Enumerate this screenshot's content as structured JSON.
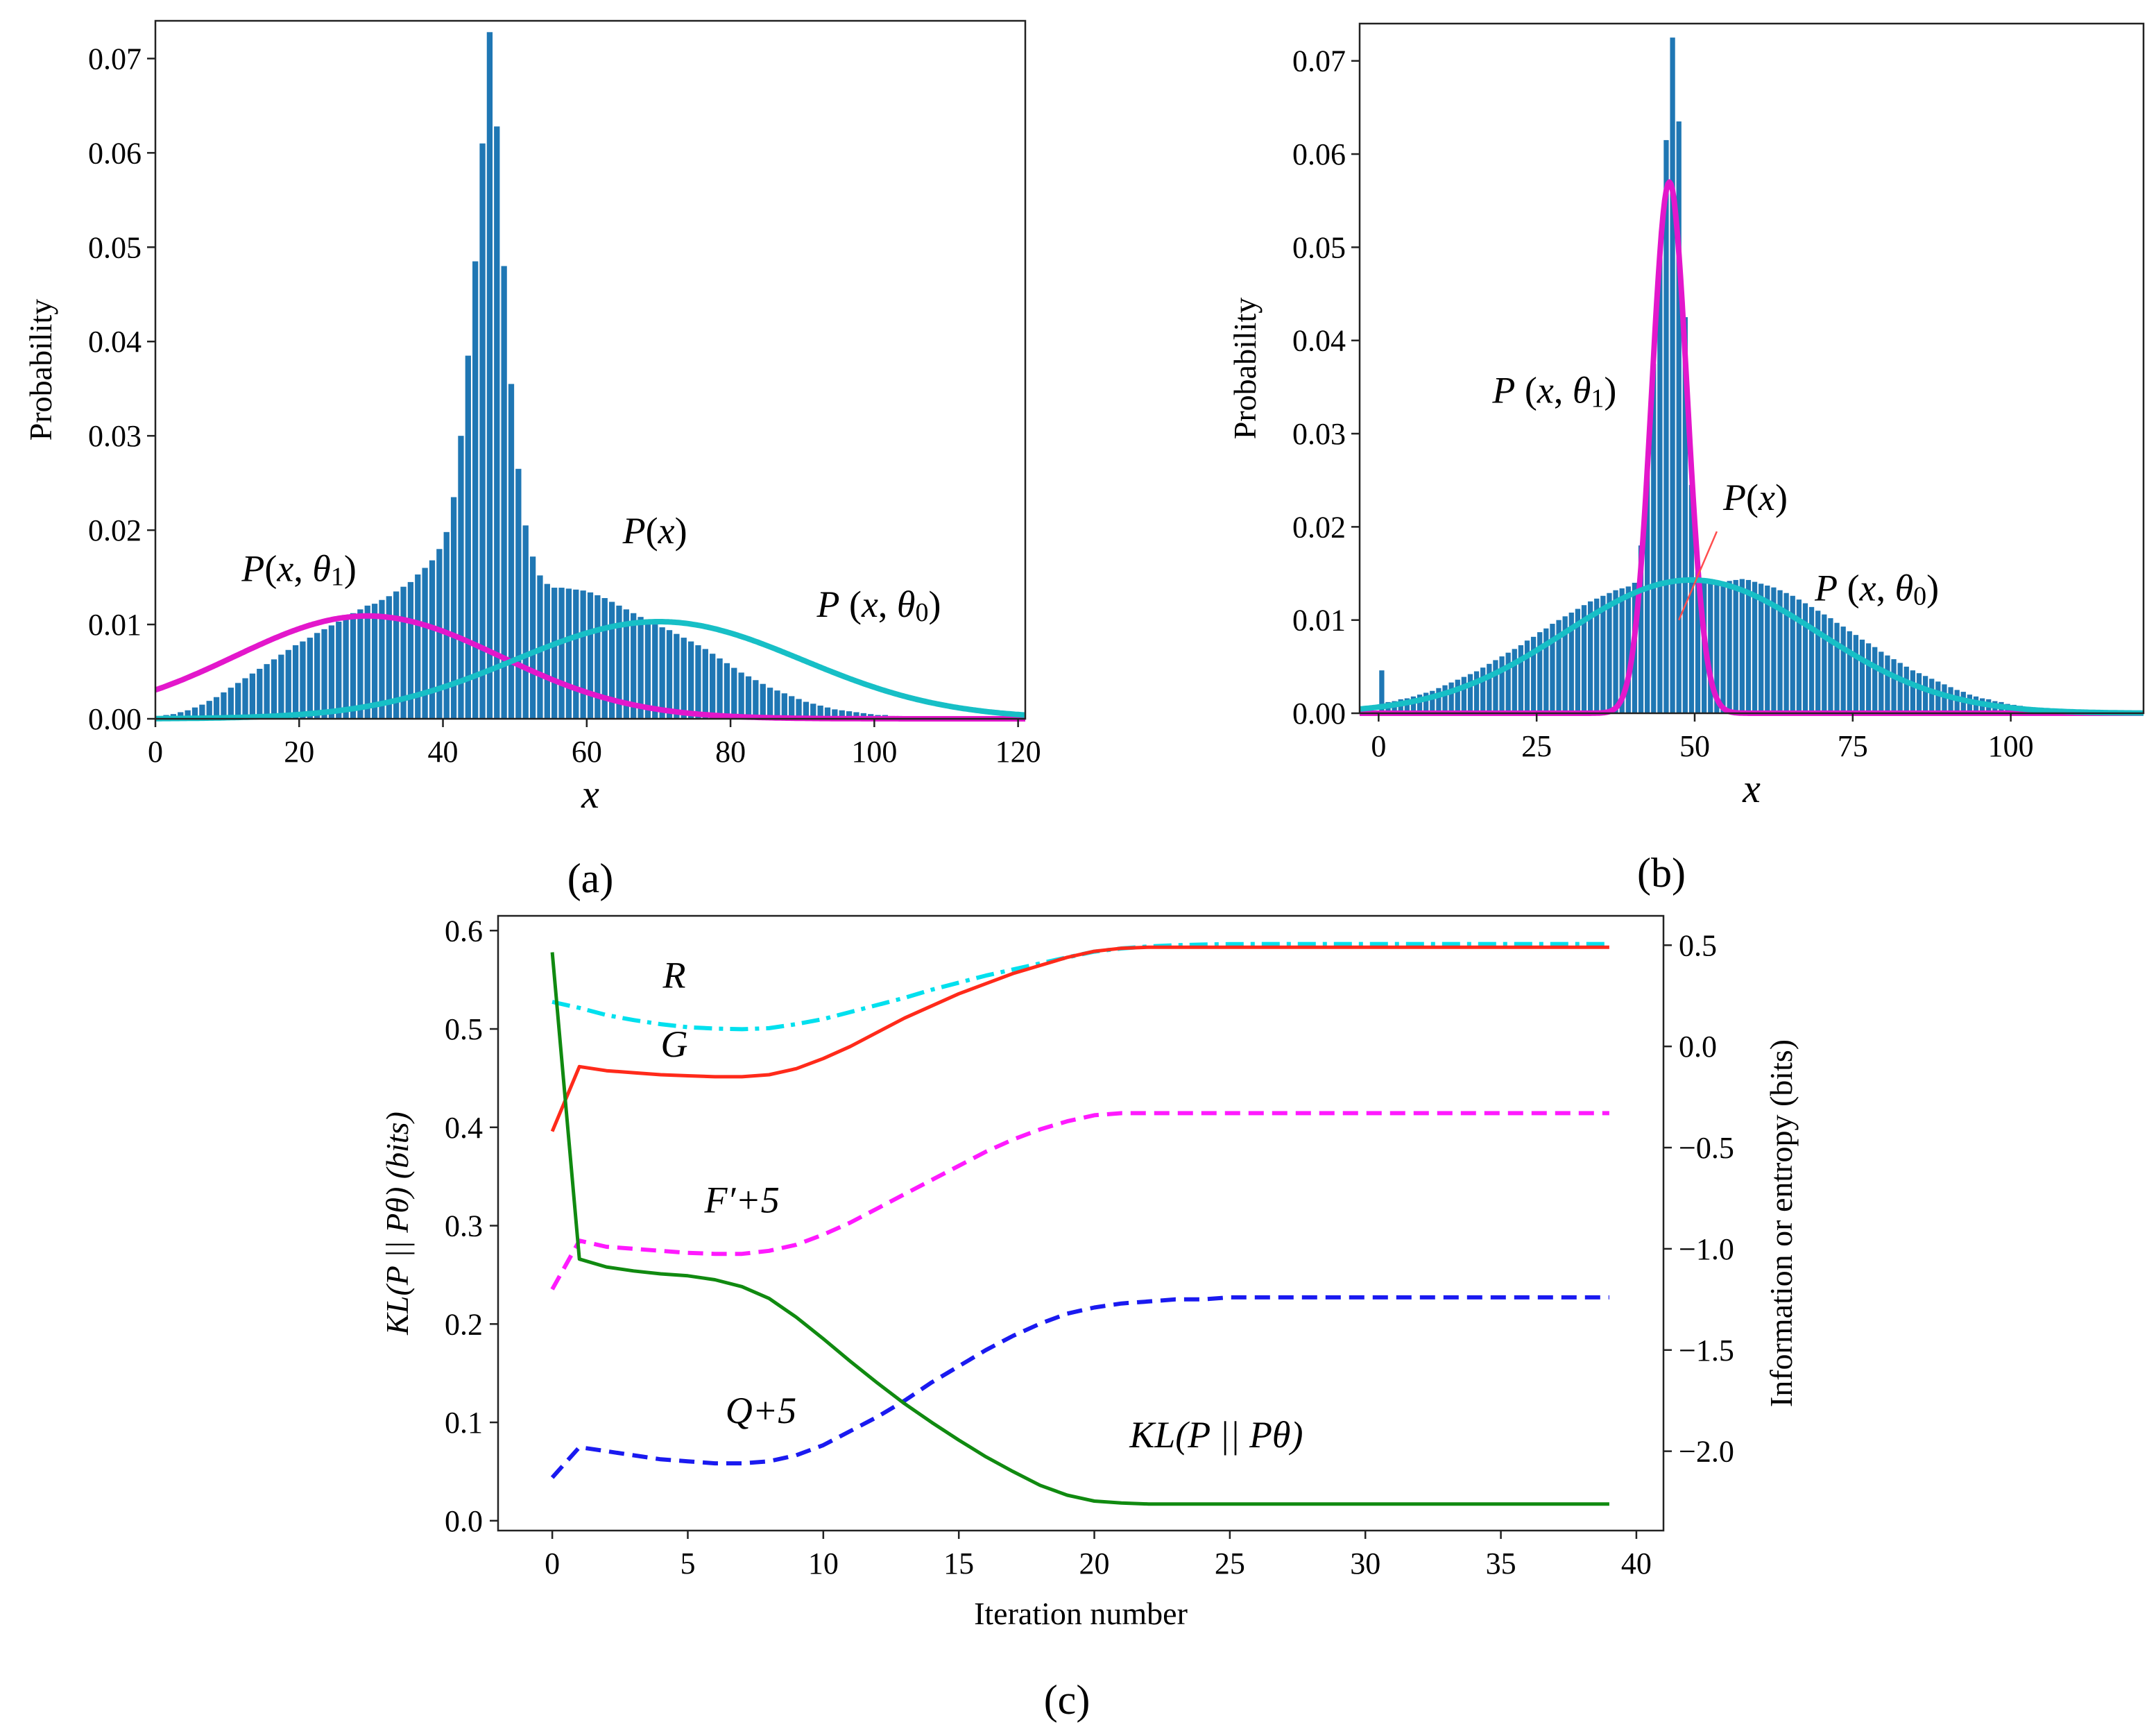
{
  "chart_data": [
    {
      "type": "bar",
      "panel_label": "(a)",
      "xlabel": "x",
      "ylabel": "Probability",
      "xlim": [
        0,
        121
      ],
      "ylim": [
        0,
        0.074
      ],
      "xticks": [
        "0",
        "20",
        "40",
        "60",
        "80",
        "100",
        "120"
      ],
      "yticks": [
        "0.00",
        "0.01",
        "0.02",
        "0.03",
        "0.04",
        "0.05",
        "0.06",
        "0.07"
      ],
      "bar_color": "#1f77b4",
      "histogram": {
        "name": "P(x)",
        "x": [
          0,
          1,
          2,
          3,
          4,
          5,
          6,
          7,
          8,
          9,
          10,
          11,
          12,
          13,
          14,
          15,
          16,
          17,
          18,
          19,
          20,
          21,
          22,
          23,
          24,
          25,
          26,
          27,
          28,
          29,
          30,
          31,
          32,
          33,
          34,
          35,
          36,
          37,
          38,
          39,
          40,
          41,
          42,
          43,
          44,
          45,
          46,
          47,
          48,
          49,
          50,
          51,
          52,
          53,
          54,
          55,
          56,
          57,
          58,
          59,
          60,
          61,
          62,
          63,
          64,
          65,
          66,
          67,
          68,
          69,
          70,
          71,
          72,
          73,
          74,
          75,
          76,
          77,
          78,
          79,
          80,
          81,
          82,
          83,
          84,
          85,
          86,
          87,
          88,
          89,
          90,
          91,
          92,
          93,
          94,
          95,
          96,
          97,
          98,
          99,
          100,
          101,
          102,
          103,
          104,
          105,
          106,
          107,
          108,
          109,
          110,
          111,
          112,
          113,
          114,
          115,
          116,
          117,
          118,
          119,
          120
        ],
        "values": [
          0.0003,
          0.0004,
          0.0005,
          0.0007,
          0.0009,
          0.0012,
          0.0015,
          0.0019,
          0.0023,
          0.0028,
          0.0033,
          0.0038,
          0.0043,
          0.0048,
          0.0053,
          0.0058,
          0.0063,
          0.0068,
          0.0073,
          0.0078,
          0.0082,
          0.0086,
          0.0091,
          0.0095,
          0.0099,
          0.0103,
          0.0108,
          0.0112,
          0.0116,
          0.012,
          0.0122,
          0.0126,
          0.013,
          0.0135,
          0.014,
          0.0145,
          0.0153,
          0.016,
          0.0168,
          0.018,
          0.0198,
          0.0235,
          0.03,
          0.0385,
          0.0485,
          0.061,
          0.0728,
          0.0628,
          0.048,
          0.0355,
          0.0265,
          0.0205,
          0.0172,
          0.0152,
          0.0143,
          0.0139,
          0.0139,
          0.0138,
          0.0137,
          0.0136,
          0.0134,
          0.0131,
          0.0128,
          0.0124,
          0.012,
          0.0116,
          0.0112,
          0.0108,
          0.0104,
          0.01,
          0.0097,
          0.0094,
          0.009,
          0.0086,
          0.0082,
          0.0078,
          0.0074,
          0.0069,
          0.0064,
          0.0059,
          0.0054,
          0.0049,
          0.0045,
          0.0041,
          0.0037,
          0.0033,
          0.003,
          0.0027,
          0.0024,
          0.0021,
          0.0018,
          0.0016,
          0.0014,
          0.0012,
          0.001,
          0.0009,
          0.0008,
          0.0007,
          0.0006,
          0.0005,
          0.0004,
          0.0004,
          0.0003,
          0.0003,
          0.0002,
          0.0002,
          0.0002,
          0.0001,
          0.0001,
          0.0001,
          0.0001,
          0.0001,
          0.0,
          0.0,
          0.0,
          0.0,
          0.0,
          0.0,
          0.0,
          0.0,
          0.0
        ]
      },
      "curves": [
        {
          "name": "P(x, θ1)",
          "color": "#e317cb",
          "mean": 29.5,
          "sd": 18.5,
          "peak": 0.0109
        },
        {
          "name": "P(x, θ0)",
          "color": "#17bfc6",
          "mean": 70,
          "sd": 20,
          "peak": 0.0103
        }
      ],
      "annotations": [
        {
          "text": "P(x, θ1)",
          "at_x": 12,
          "at_y": 0.0146
        },
        {
          "text": "P(x)",
          "at_x": 65,
          "at_y": 0.0186
        },
        {
          "text": "P (x, θ0)",
          "at_x": 92,
          "at_y": 0.0108
        }
      ]
    },
    {
      "type": "bar",
      "panel_label": "(b)",
      "xlabel": "x",
      "ylabel": "Probability",
      "xlim": [
        -3,
        121
      ],
      "ylim": [
        0,
        0.074
      ],
      "xticks": [
        "0",
        "25",
        "50",
        "75",
        "100"
      ],
      "yticks": [
        "0.00",
        "0.01",
        "0.02",
        "0.03",
        "0.04",
        "0.05",
        "0.06",
        "0.07"
      ],
      "bar_color": "#1f77b4",
      "histogram": {
        "name": "P(x)",
        "x": [
          0,
          1,
          2,
          3,
          4,
          5,
          6,
          7,
          8,
          9,
          10,
          11,
          12,
          13,
          14,
          15,
          16,
          17,
          18,
          19,
          20,
          21,
          22,
          23,
          24,
          25,
          26,
          27,
          28,
          29,
          30,
          31,
          32,
          33,
          34,
          35,
          36,
          37,
          38,
          39,
          40,
          41,
          42,
          43,
          44,
          45,
          46,
          47,
          48,
          49,
          50,
          51,
          52,
          53,
          54,
          55,
          56,
          57,
          58,
          59,
          60,
          61,
          62,
          63,
          64,
          65,
          66,
          67,
          68,
          69,
          70,
          71,
          72,
          73,
          74,
          75,
          76,
          77,
          78,
          79,
          80,
          81,
          82,
          83,
          84,
          85,
          86,
          87,
          88,
          89,
          90,
          91,
          92,
          93,
          94,
          95,
          96,
          97,
          98,
          99,
          100,
          101,
          102,
          103,
          104,
          105,
          106,
          107,
          108,
          109,
          110,
          111,
          112,
          113,
          114,
          115,
          116,
          117,
          118,
          119,
          120
        ],
        "values": [
          0.0046,
          0.0012,
          0.0013,
          0.0015,
          0.0016,
          0.0018,
          0.002,
          0.0022,
          0.0024,
          0.0027,
          0.003,
          0.0033,
          0.0036,
          0.0039,
          0.0042,
          0.0045,
          0.0049,
          0.0053,
          0.0057,
          0.0061,
          0.0065,
          0.0069,
          0.0073,
          0.0078,
          0.0082,
          0.0087,
          0.0091,
          0.0096,
          0.01,
          0.0104,
          0.0108,
          0.0112,
          0.0116,
          0.012,
          0.0123,
          0.0126,
          0.0129,
          0.0132,
          0.0134,
          0.0136,
          0.014,
          0.018,
          0.026,
          0.0375,
          0.0495,
          0.0615,
          0.0725,
          0.0635,
          0.0425,
          0.0245,
          0.0152,
          0.0143,
          0.0143,
          0.0142,
          0.0141,
          0.0142,
          0.0143,
          0.0144,
          0.0143,
          0.0141,
          0.0139,
          0.0137,
          0.0135,
          0.0132,
          0.0129,
          0.0126,
          0.0122,
          0.0118,
          0.0114,
          0.011,
          0.0106,
          0.0102,
          0.0097,
          0.0093,
          0.0088,
          0.0084,
          0.0079,
          0.0075,
          0.0071,
          0.0066,
          0.0062,
          0.0058,
          0.0054,
          0.005,
          0.0046,
          0.0043,
          0.004,
          0.0037,
          0.0034,
          0.0031,
          0.0028,
          0.0025,
          0.0023,
          0.002,
          0.0018,
          0.0016,
          0.0015,
          0.0013,
          0.0012,
          0.001,
          0.0009,
          0.0008,
          0.0007,
          0.0006,
          0.0005,
          0.0005,
          0.0004,
          0.0004,
          0.0003,
          0.0003,
          0.0002,
          0.0002,
          0.0002,
          0.0002,
          0.0001,
          0.0001,
          0.0001,
          0.0001,
          0.0001,
          0.0001,
          0.0
        ]
      },
      "curves": [
        {
          "name": "P(x, θ1)",
          "color": "#e317cb",
          "mean": 46,
          "sd": 2.8,
          "peak": 0.057
        },
        {
          "name": "P(x, θ0)",
          "color": "#17bfc6",
          "mean": 49.5,
          "sd": 20,
          "peak": 0.0143
        }
      ],
      "annotations": [
        {
          "text": "P (x, θ1)",
          "at_x": 18,
          "at_y": 0.0333
        },
        {
          "text": "P(x)",
          "at_x": 54.5,
          "at_y": 0.0218
        },
        {
          "text": "P (x, θ0)",
          "at_x": 69,
          "at_y": 0.0121
        }
      ],
      "pointer": {
        "from_x": 53.5,
        "from_y": 0.0195,
        "to_x": 47.5,
        "to_y": 0.01
      }
    },
    {
      "type": "line",
      "panel_label": "(c)",
      "xlabel": "Iteration number",
      "ylabel_left": "KL(P || Pθ) (bits)",
      "ylabel_right": "Information or entropy (bits)",
      "xlim": [
        -2,
        41
      ],
      "ylim_left": [
        -0.01,
        0.615
      ],
      "ylim_right": [
        -2.392,
        0.645
      ],
      "xticks": [
        "0",
        "5",
        "10",
        "15",
        "20",
        "25",
        "30",
        "35",
        "40"
      ],
      "yticks_left": [
        "0.0",
        "0.1",
        "0.2",
        "0.3",
        "0.4",
        "0.5",
        "0.6"
      ],
      "yticks_right": [
        "−2.0",
        "−1.5",
        "−1.0",
        "−0.5",
        "0.0",
        "0.5"
      ],
      "x": [
        0,
        1,
        2,
        3,
        4,
        5,
        6,
        7,
        8,
        9,
        10,
        11,
        12,
        13,
        14,
        15,
        16,
        17,
        18,
        19,
        20,
        21,
        22,
        23,
        24,
        25,
        26,
        27,
        28,
        29,
        30,
        31,
        32,
        33,
        34,
        35,
        36,
        37,
        38,
        39
      ],
      "series": [
        {
          "name": "R",
          "axis": "right",
          "color": "#00e0ee",
          "style": "dashdot",
          "values": [
            0.22,
            0.19,
            0.155,
            0.13,
            0.11,
            0.095,
            0.088,
            0.085,
            0.09,
            0.11,
            0.135,
            0.17,
            0.205,
            0.24,
            0.28,
            0.315,
            0.35,
            0.38,
            0.41,
            0.44,
            0.468,
            0.484,
            0.494,
            0.5,
            0.503,
            0.505,
            0.506,
            0.506,
            0.506,
            0.506,
            0.506,
            0.506,
            0.506,
            0.506,
            0.506,
            0.506,
            0.506,
            0.506,
            0.506,
            0.506
          ]
        },
        {
          "name": "G",
          "axis": "right",
          "color": "#ff2a1a",
          "style": "solid",
          "values": [
            -0.42,
            -0.1,
            -0.12,
            -0.13,
            -0.14,
            -0.145,
            -0.15,
            -0.15,
            -0.14,
            -0.11,
            -0.06,
            0.0,
            0.07,
            0.14,
            0.2,
            0.26,
            0.31,
            0.36,
            0.4,
            0.44,
            0.47,
            0.485,
            0.49,
            0.49,
            0.49,
            0.49,
            0.49,
            0.49,
            0.49,
            0.49,
            0.49,
            0.49,
            0.49,
            0.49,
            0.49,
            0.49,
            0.49,
            0.49,
            0.49,
            0.49
          ]
        },
        {
          "name": "F'+5",
          "axis": "right",
          "color": "#ff1aff",
          "style": "dashed",
          "values": [
            -1.2,
            -0.96,
            -0.99,
            -1.0,
            -1.01,
            -1.02,
            -1.025,
            -1.025,
            -1.01,
            -0.98,
            -0.93,
            -0.87,
            -0.8,
            -0.73,
            -0.66,
            -0.59,
            -0.52,
            -0.46,
            -0.41,
            -0.37,
            -0.34,
            -0.33,
            -0.33,
            -0.33,
            -0.33,
            -0.33,
            -0.33,
            -0.33,
            -0.33,
            -0.33,
            -0.33,
            -0.33,
            -0.33,
            -0.33,
            -0.33,
            -0.33,
            -0.33,
            -0.33,
            -0.33,
            -0.33
          ]
        },
        {
          "name": "Q+5",
          "axis": "right",
          "color": "#1a1af0",
          "style": "dashed",
          "values": [
            -2.13,
            -1.98,
            -2.0,
            -2.02,
            -2.04,
            -2.05,
            -2.06,
            -2.06,
            -2.05,
            -2.02,
            -1.97,
            -1.9,
            -1.83,
            -1.75,
            -1.66,
            -1.58,
            -1.5,
            -1.43,
            -1.37,
            -1.32,
            -1.29,
            -1.27,
            -1.26,
            -1.25,
            -1.25,
            -1.24,
            -1.24,
            -1.24,
            -1.24,
            -1.24,
            -1.24,
            -1.24,
            -1.24,
            -1.24,
            -1.24,
            -1.24,
            -1.24,
            -1.24,
            -1.24,
            -1.24
          ]
        },
        {
          "name": "KL(P || Pθ)",
          "axis": "left",
          "color": "#108a10",
          "style": "solid",
          "values": [
            0.578,
            0.266,
            0.258,
            0.254,
            0.251,
            0.249,
            0.245,
            0.238,
            0.226,
            0.207,
            0.185,
            0.162,
            0.14,
            0.119,
            0.1,
            0.082,
            0.065,
            0.05,
            0.036,
            0.026,
            0.02,
            0.018,
            0.017,
            0.017,
            0.017,
            0.017,
            0.017,
            0.017,
            0.017,
            0.017,
            0.017,
            0.017,
            0.017,
            0.017,
            0.017,
            0.017,
            0.017,
            0.017,
            0.017,
            0.017
          ]
        }
      ],
      "annotations": [
        {
          "name": "R",
          "text": "R",
          "at_x": 4.5,
          "at_y_right": 0.29
        },
        {
          "name": "G",
          "text": "G",
          "at_x": 4.5,
          "at_y_right": -0.05
        },
        {
          "name": "F'+5",
          "text": "F′+5",
          "at_x": 7,
          "at_y_right": -0.82
        },
        {
          "name": "Q+5",
          "text": "Q+5",
          "at_x": 7.7,
          "at_y_right": -1.86
        },
        {
          "name": "KL",
          "text": "KL(P || Pθ)",
          "at_x": 24.5,
          "at_y_right": -1.98
        }
      ]
    }
  ]
}
